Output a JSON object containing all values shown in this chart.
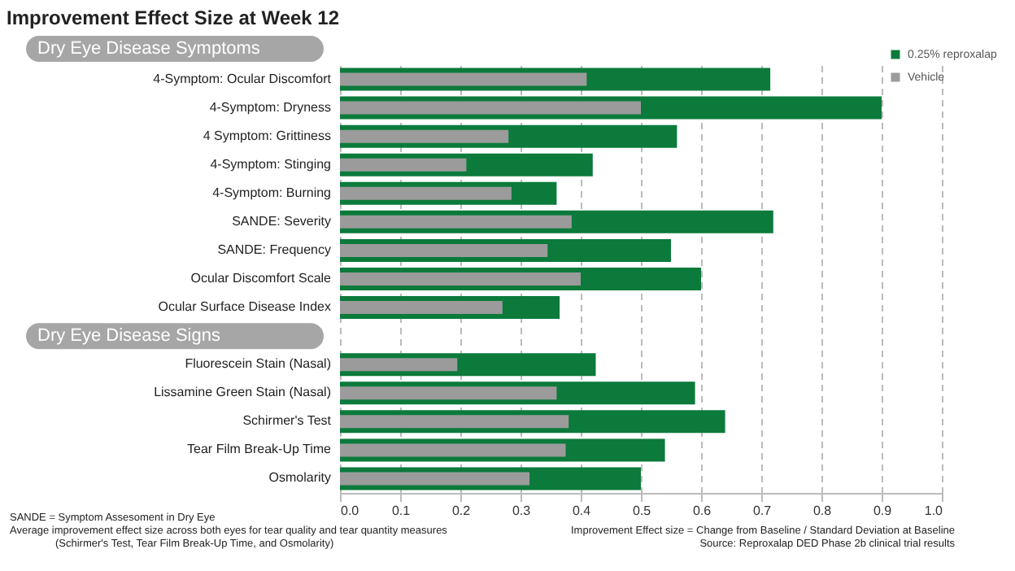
{
  "chart_data": {
    "type": "bar",
    "orientation": "horizontal",
    "title": "Improvement Effect Size at Week 12",
    "categories": [
      "4-Symptom: Ocular Discomfort",
      "4-Symptom: Dryness",
      "4 Symptom: Grittiness",
      "4-Symptom: Stinging",
      "4-Symptom: Burning",
      "SANDE: Severity",
      "SANDE: Frequency",
      "Ocular Discomfort Scale",
      "Ocular Surface Disease Index",
      null,
      "Fluorescein Stain (Nasal)",
      "Lissamine Green Stain (Nasal)",
      "Schirmer's Test",
      "Tear Film Break-Up Time",
      "Osmolarity"
    ],
    "series": [
      {
        "name": "0.25% reproxalap",
        "color": "#0b7a3b",
        "values": [
          0.715,
          0.9,
          0.56,
          0.42,
          0.36,
          0.72,
          0.55,
          0.6,
          0.365,
          null,
          0.425,
          0.59,
          0.64,
          0.54,
          0.5
        ]
      },
      {
        "name": "Vehicle",
        "color": "#9b9b9b",
        "values": [
          0.41,
          0.5,
          0.28,
          0.21,
          0.285,
          0.385,
          0.345,
          0.4,
          0.27,
          null,
          0.195,
          0.36,
          0.38,
          0.375,
          0.315
        ]
      }
    ],
    "xlim": [
      0,
      1.0
    ],
    "xticks": [
      {
        "value": 0,
        "label": "0.0"
      },
      0.1,
      0.2,
      0.3,
      0.4,
      0.5,
      0.6,
      0.7,
      0.8,
      0.9,
      {
        "value": 1,
        "label": "1.0"
      }
    ],
    "grid": "x",
    "legend": "top right",
    "annotations": [
      "Dry Eye Disease Symptoms",
      "Dry Eye Disease Signs",
      "SANDE = Symptom Assesoment in Dry Eye",
      "Average improvement effect size across both eyes for tear quality and tear quantity measures",
      "(Schirmer's Test, Tear Film Break-Up Time, and Osmolarity)",
      "Improvement Effect size = Change from Baseline / Standard Deviation at Baseline",
      "Source: Reproxalap DED Phase 2b clinical trial results"
    ]
  }
}
